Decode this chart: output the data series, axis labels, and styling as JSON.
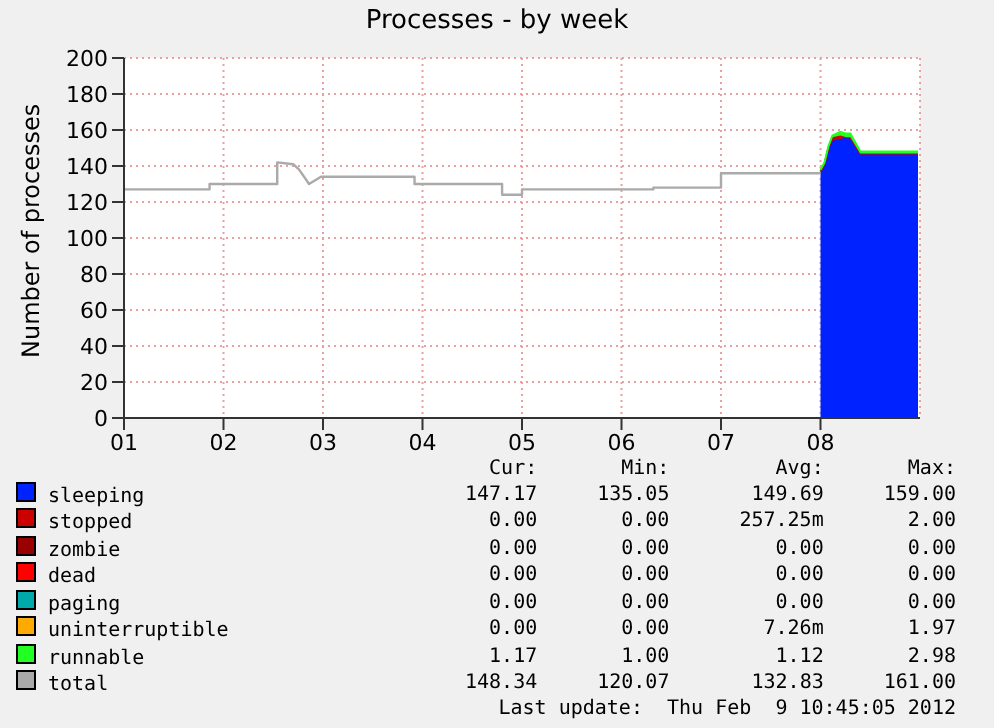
{
  "chart_data": {
    "type": "area",
    "title": "Processes - by week",
    "ylabel": "Number of processes",
    "stacked": true,
    "grid": true,
    "legend": "bottom",
    "marker": "none",
    "line_style": "solid",
    "xlim": [
      1,
      9
    ],
    "xticks": [
      {
        "value": 1,
        "label": "01"
      },
      {
        "value": 2,
        "label": "02"
      },
      {
        "value": 3,
        "label": "03"
      },
      {
        "value": 4,
        "label": "04"
      },
      {
        "value": 5,
        "label": "05"
      },
      {
        "value": 6,
        "label": "06"
      },
      {
        "value": 7,
        "label": "07"
      },
      {
        "value": 8,
        "label": "08"
      }
    ],
    "ylim": [
      0,
      200
    ],
    "yticks": [
      0,
      20,
      40,
      60,
      80,
      100,
      120,
      140,
      160,
      180,
      200
    ],
    "x": [
      8.0,
      8.04,
      8.08,
      8.12,
      8.2,
      8.26,
      8.3,
      8.4,
      8.6,
      8.8,
      8.98
    ],
    "series": [
      {
        "name": "sleeping",
        "color": "#0022ff",
        "values": [
          137,
          141,
          150,
          154,
          155,
          156,
          156,
          147,
          147,
          147,
          147
        ]
      },
      {
        "name": "stopped",
        "color": "#cc0000",
        "values": [
          0,
          0,
          0,
          2,
          2,
          0,
          0,
          0,
          0,
          0,
          0
        ]
      },
      {
        "name": "zombie",
        "color": "#990000",
        "values": [
          null,
          null,
          null,
          null,
          null,
          null,
          null,
          null,
          null,
          null,
          null
        ]
      },
      {
        "name": "dead",
        "color": "#ff0000",
        "values": [
          null,
          null,
          null,
          null,
          null,
          null,
          null,
          null,
          null,
          null,
          null
        ]
      },
      {
        "name": "paging",
        "color": "#00aaaa",
        "values": [
          null,
          null,
          null,
          null,
          null,
          null,
          null,
          null,
          null,
          null,
          null
        ]
      },
      {
        "name": "uninterruptible",
        "color": "#ffaa00",
        "values": [
          null,
          null,
          null,
          null,
          null,
          null,
          null,
          null,
          null,
          null,
          null
        ]
      },
      {
        "name": "runnable",
        "color": "#22ff22",
        "values": [
          1,
          1,
          1,
          1,
          2,
          2,
          2,
          1,
          1,
          1,
          1
        ]
      },
      {
        "name": "total",
        "type": "line",
        "color": "#aaaaaa",
        "x": [
          1,
          1.86,
          1.86,
          2.54,
          2.54,
          2.7,
          2.76,
          2.86,
          2.98,
          3.92,
          3.92,
          4.8,
          4.8,
          5.0,
          5.0,
          6.32,
          6.32,
          7.0,
          7.0,
          8.0
        ],
        "values": [
          127,
          127,
          130,
          130,
          142,
          141,
          138,
          130,
          134,
          134,
          130,
          130,
          124,
          124,
          127,
          127,
          128,
          128,
          136,
          136
        ]
      }
    ],
    "annotations": [
      "Cur:",
      "Min:",
      "Avg:",
      "Max:",
      "147.17",
      "135.05",
      "149.69",
      "159.00",
      "0.00",
      "0.00",
      "257.25m",
      "2.00",
      "0.00",
      "0.00",
      "0.00",
      "0.00",
      "0.00",
      "0.00",
      "0.00",
      "0.00",
      "0.00",
      "0.00",
      "0.00",
      "0.00",
      "0.00",
      "0.00",
      "7.26m",
      "1.97",
      "1.17",
      "1.00",
      "1.12",
      "2.98",
      "148.34",
      "120.07",
      "132.83",
      "161.00",
      "Last update:  Thu Feb  9 10:45:05 2012"
    ]
  }
}
